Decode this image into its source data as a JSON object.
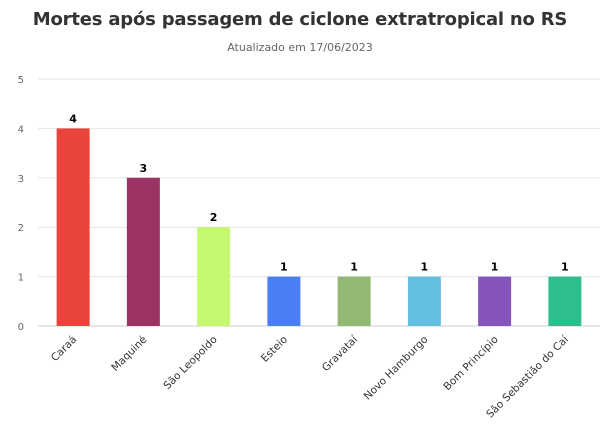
{
  "chart_data": {
    "type": "bar",
    "title": "Mortes após passagem de ciclone extratropical no RS",
    "subtitle": "Atualizado em 17/06/2023",
    "xlabel": "",
    "ylabel": "",
    "ylim": [
      0,
      5
    ],
    "yticks": [
      0,
      1,
      2,
      3,
      4,
      5
    ],
    "grid": true,
    "categories": [
      "Caraá",
      "Maquiné",
      "São Leopoldo",
      "Esteio",
      "Gravataí",
      "Novo Hamburgo",
      "Bom Princípio",
      "São Sebastião do Caí"
    ],
    "values": [
      4,
      3,
      2,
      1,
      1,
      1,
      1,
      1
    ],
    "colors": [
      "#e8453c",
      "#9b3465",
      "#c4f870",
      "#4a7ff4",
      "#92b873",
      "#63bfe0",
      "#8654bb",
      "#2dbd8e"
    ]
  }
}
